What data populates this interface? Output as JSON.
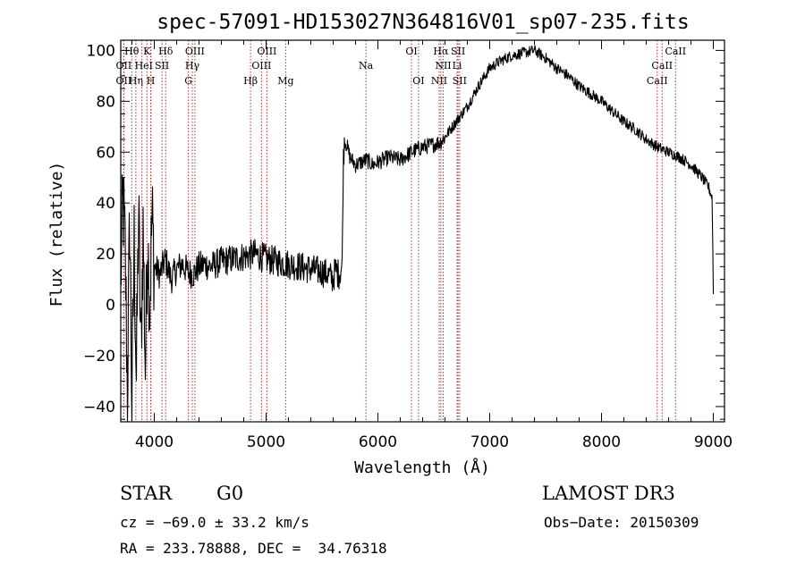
{
  "chart_data": {
    "type": "line",
    "title": "spec-57091-HD153027N364816V01_sp07-235.fits",
    "xlabel": "Wavelength (Å)",
    "ylabel": "Flux (relative)",
    "xlim": [
      3700,
      9100
    ],
    "ylim": [
      -46,
      104
    ],
    "xticks": [
      4000,
      5000,
      6000,
      7000,
      8000,
      9000
    ],
    "yticks": [
      -40,
      -20,
      0,
      20,
      40,
      60,
      80,
      100
    ],
    "x_minor_step": 200,
    "y_minor_step": 5,
    "series": [
      {
        "name": "flux",
        "x": [
          3700,
          3720,
          3740,
          3760,
          3780,
          3800,
          3820,
          3840,
          3860,
          3880,
          3900,
          3920,
          3940,
          3960,
          3980,
          4000,
          4050,
          4100,
          4150,
          4200,
          4250,
          4300,
          4350,
          4400,
          4450,
          4500,
          4600,
          4700,
          4800,
          4900,
          5000,
          5100,
          5200,
          5300,
          5400,
          5500,
          5550,
          5600,
          5620,
          5650,
          5680,
          5690,
          5700,
          5720,
          5750,
          5800,
          5850,
          5900,
          5950,
          6000,
          6100,
          6200,
          6300,
          6400,
          6500,
          6560,
          6600,
          6700,
          6800,
          6900,
          7000,
          7100,
          7200,
          7300,
          7400,
          7500,
          7600,
          7700,
          7800,
          7900,
          8000,
          8100,
          8200,
          8300,
          8400,
          8500,
          8600,
          8700,
          8800,
          8900,
          8960,
          8990,
          9000
        ],
        "y": [
          10,
          42,
          20,
          -35,
          35,
          -40,
          25,
          -30,
          38,
          -20,
          30,
          -25,
          28,
          0,
          35,
          15,
          12,
          18,
          10,
          14,
          16,
          13,
          12,
          15,
          16,
          15,
          17,
          18,
          19,
          20,
          18,
          17,
          16,
          15,
          14,
          13,
          12,
          10,
          14,
          12,
          15,
          55,
          65,
          63,
          58,
          55,
          56,
          57,
          55,
          56,
          58,
          57,
          60,
          62,
          63,
          64,
          66,
          72,
          78,
          86,
          93,
          96,
          98,
          99,
          100,
          97,
          93,
          90,
          86,
          83,
          80,
          76,
          72,
          69,
          65,
          62,
          60,
          58,
          55,
          50,
          46,
          42,
          5
        ]
      }
    ],
    "line_markers": [
      {
        "label": "Hθ",
        "x": 3798,
        "row": 0
      },
      {
        "label": "K",
        "x": 3934,
        "row": 0
      },
      {
        "label": "Hδ",
        "x": 4102,
        "row": 0
      },
      {
        "label": "OIII",
        "x": 4363,
        "row": 0
      },
      {
        "label": "OIII",
        "x": 5007,
        "row": 0
      },
      {
        "label": "OI",
        "x": 6300,
        "row": 0
      },
      {
        "label": "Hα",
        "x": 6563,
        "row": 0
      },
      {
        "label": "SII",
        "x": 6717,
        "row": 0
      },
      {
        "label": "CaII",
        "x": 8662,
        "row": 0
      },
      {
        "label": "OII",
        "x": 3727,
        "row": 1
      },
      {
        "label": "He",
        "x": 3889,
        "row": 1
      },
      {
        "label": "I",
        "x": 3970,
        "row": 1
      },
      {
        "label": "SII",
        "x": 4069,
        "row": 1
      },
      {
        "label": "Hγ",
        "x": 4340,
        "row": 1
      },
      {
        "label": "OIII",
        "x": 4959,
        "row": 1
      },
      {
        "label": "Na",
        "x": 5893,
        "row": 1
      },
      {
        "label": "NII",
        "x": 6584,
        "row": 1
      },
      {
        "label": "Li",
        "x": 6708,
        "row": 1
      },
      {
        "label": "CaII",
        "x": 8542,
        "row": 1
      },
      {
        "label": "OII",
        "x": 3727,
        "row": 2
      },
      {
        "label": "Hη",
        "x": 3835,
        "row": 2
      },
      {
        "label": "H",
        "x": 3968,
        "row": 2
      },
      {
        "label": "G",
        "x": 4305,
        "row": 2
      },
      {
        "label": "Hβ",
        "x": 4861,
        "row": 2
      },
      {
        "label": "Mg",
        "x": 5175,
        "row": 2
      },
      {
        "label": "OI",
        "x": 6363,
        "row": 2
      },
      {
        "label": "NII",
        "x": 6548,
        "row": 2
      },
      {
        "label": "SII",
        "x": 6731,
        "row": 2
      },
      {
        "label": "CaII",
        "x": 8498,
        "row": 2
      }
    ],
    "marker_color": "#b03030"
  },
  "info": {
    "class_label": "STAR",
    "subclass_label": "G0",
    "survey": "LAMOST DR3",
    "cz": "cz = −69.0 ± 33.2 km/s",
    "obs_date": "Obs−Date: 20150309",
    "coords": "RA = 233.78888, DEC =  34.76318"
  }
}
